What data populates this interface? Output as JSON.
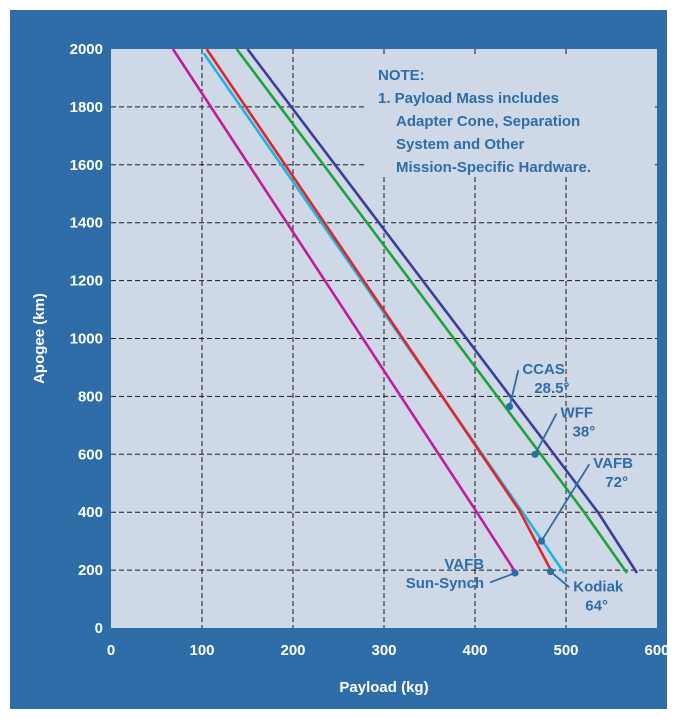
{
  "chart_data": {
    "type": "line",
    "xlabel": "Payload (kg)",
    "ylabel": "Apogee (km)",
    "xlim": [
      0,
      600
    ],
    "ylim": [
      0,
      2000
    ],
    "xticks": [
      "0",
      "100",
      "200",
      "300",
      "400",
      "500",
      "600"
    ],
    "yticks": [
      "0",
      "200",
      "400",
      "600",
      "800",
      "1000",
      "1200",
      "1400",
      "1600",
      "1800",
      "2000"
    ],
    "grid": true,
    "legend": "none",
    "background": "#cfd8e6",
    "frame_color": "#2e6da8",
    "note": {
      "lines": [
        "NOTE:",
        "1. Payload Mass includes",
        "Adapter Cone, Separation",
        "System and Other",
        "Mission-Specific Hardware."
      ]
    },
    "series": [
      {
        "color": "#3a3d9c",
        "points": [
          [
            150,
            2000
          ],
          [
            535,
            400
          ],
          [
            578,
            190
          ]
        ]
      },
      {
        "color": "#1fa23a",
        "points": [
          [
            138,
            2000
          ],
          [
            520,
            400
          ],
          [
            567,
            190
          ]
        ]
      },
      {
        "color": "#1eb3e3",
        "points": [
          [
            102,
            1985
          ],
          [
            450,
            410
          ],
          [
            498,
            190
          ]
        ]
      },
      {
        "color": "#e0262b",
        "points": [
          [
            105,
            2000
          ],
          [
            448,
            410
          ],
          [
            485,
            190
          ]
        ]
      },
      {
        "color": "#c01ca0",
        "points": [
          [
            68,
            2000
          ],
          [
            402,
            400
          ],
          [
            446,
            185
          ]
        ]
      }
    ],
    "annotations": [
      {
        "lines": [
          "CCAS",
          "28.5°"
        ],
        "point": [
          438,
          765
        ],
        "label_anchor": "start",
        "label_pos": [
          452,
          870
        ]
      },
      {
        "lines": [
          "WFF",
          "38°"
        ],
        "point": [
          466,
          600
        ],
        "label_anchor": "start",
        "label_pos": [
          494,
          720
        ]
      },
      {
        "lines": [
          "VAFB",
          "72°"
        ],
        "point": [
          473,
          300
        ],
        "label_anchor": "start",
        "label_pos": [
          530,
          545
        ]
      },
      {
        "lines": [
          "VAFB",
          "Sun-Synch"
        ],
        "point": [
          444,
          190
        ],
        "label_anchor": "end",
        "label_pos": [
          410,
          185
        ]
      },
      {
        "lines": [
          "Kodiak",
          "64°"
        ],
        "point": [
          483,
          195
        ],
        "label_anchor": "start",
        "label_pos": [
          508,
          120
        ]
      }
    ],
    "annotation_color": "#2e6da8"
  }
}
